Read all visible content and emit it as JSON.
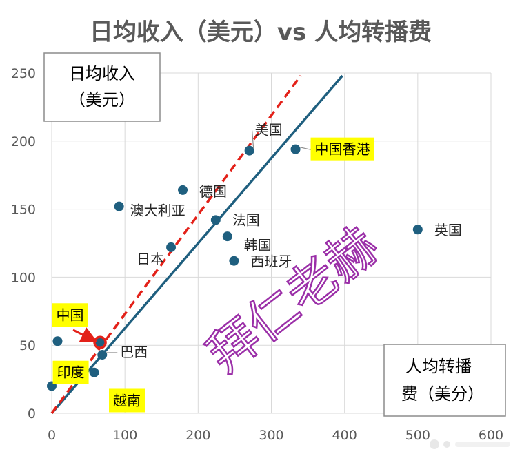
{
  "chart_data": {
    "type": "scatter",
    "title": "日均收入（美元）vs 人均转播费",
    "ylabel_lines": [
      "日均收入",
      "（美元）"
    ],
    "xlabel_lines": [
      "人均转播",
      "费（美分）"
    ],
    "xlim": [
      0,
      600
    ],
    "ylim": [
      0,
      250
    ],
    "x_ticks": [
      0,
      100,
      200,
      300,
      400,
      500,
      600
    ],
    "y_ticks": [
      0,
      50,
      100,
      150,
      200,
      250
    ],
    "grid": true,
    "point_color": "#1f5f7f",
    "trend_color": "#1f5f7f",
    "dash_color": "#e32119",
    "highlight_color": "#ffff00",
    "points": [
      {
        "name": "美国",
        "x": 270,
        "y": 193
      },
      {
        "name": "中国香港",
        "x": 333,
        "y": 194,
        "highlight": true
      },
      {
        "name": "德国",
        "x": 179,
        "y": 164
      },
      {
        "name": "澳大利亚",
        "x": 92,
        "y": 152
      },
      {
        "name": "法国",
        "x": 224,
        "y": 142
      },
      {
        "name": "英国",
        "x": 500,
        "y": 135
      },
      {
        "name": "韩国",
        "x": 240,
        "y": 130
      },
      {
        "name": "日本",
        "x": 163,
        "y": 122
      },
      {
        "name": "西班牙",
        "x": 249,
        "y": 112
      },
      {
        "name": "中国",
        "x": 8,
        "y": 53,
        "highlight": true
      },
      {
        "name": "巴西",
        "x": 69,
        "y": 43
      },
      {
        "name": "印度",
        "x": 58,
        "y": 30,
        "highlight": true
      },
      {
        "name": "越南",
        "x": 0,
        "y": 20,
        "highlight": true
      },
      {
        "name": "",
        "x": 66,
        "y": 52,
        "marked": true
      }
    ],
    "trend_line": {
      "x": [
        0,
        397
      ],
      "y": [
        0,
        248
      ]
    },
    "dashed_line": {
      "x": [
        0,
        340
      ],
      "y": [
        0,
        248
      ]
    }
  },
  "watermark": "拜仁老赫"
}
